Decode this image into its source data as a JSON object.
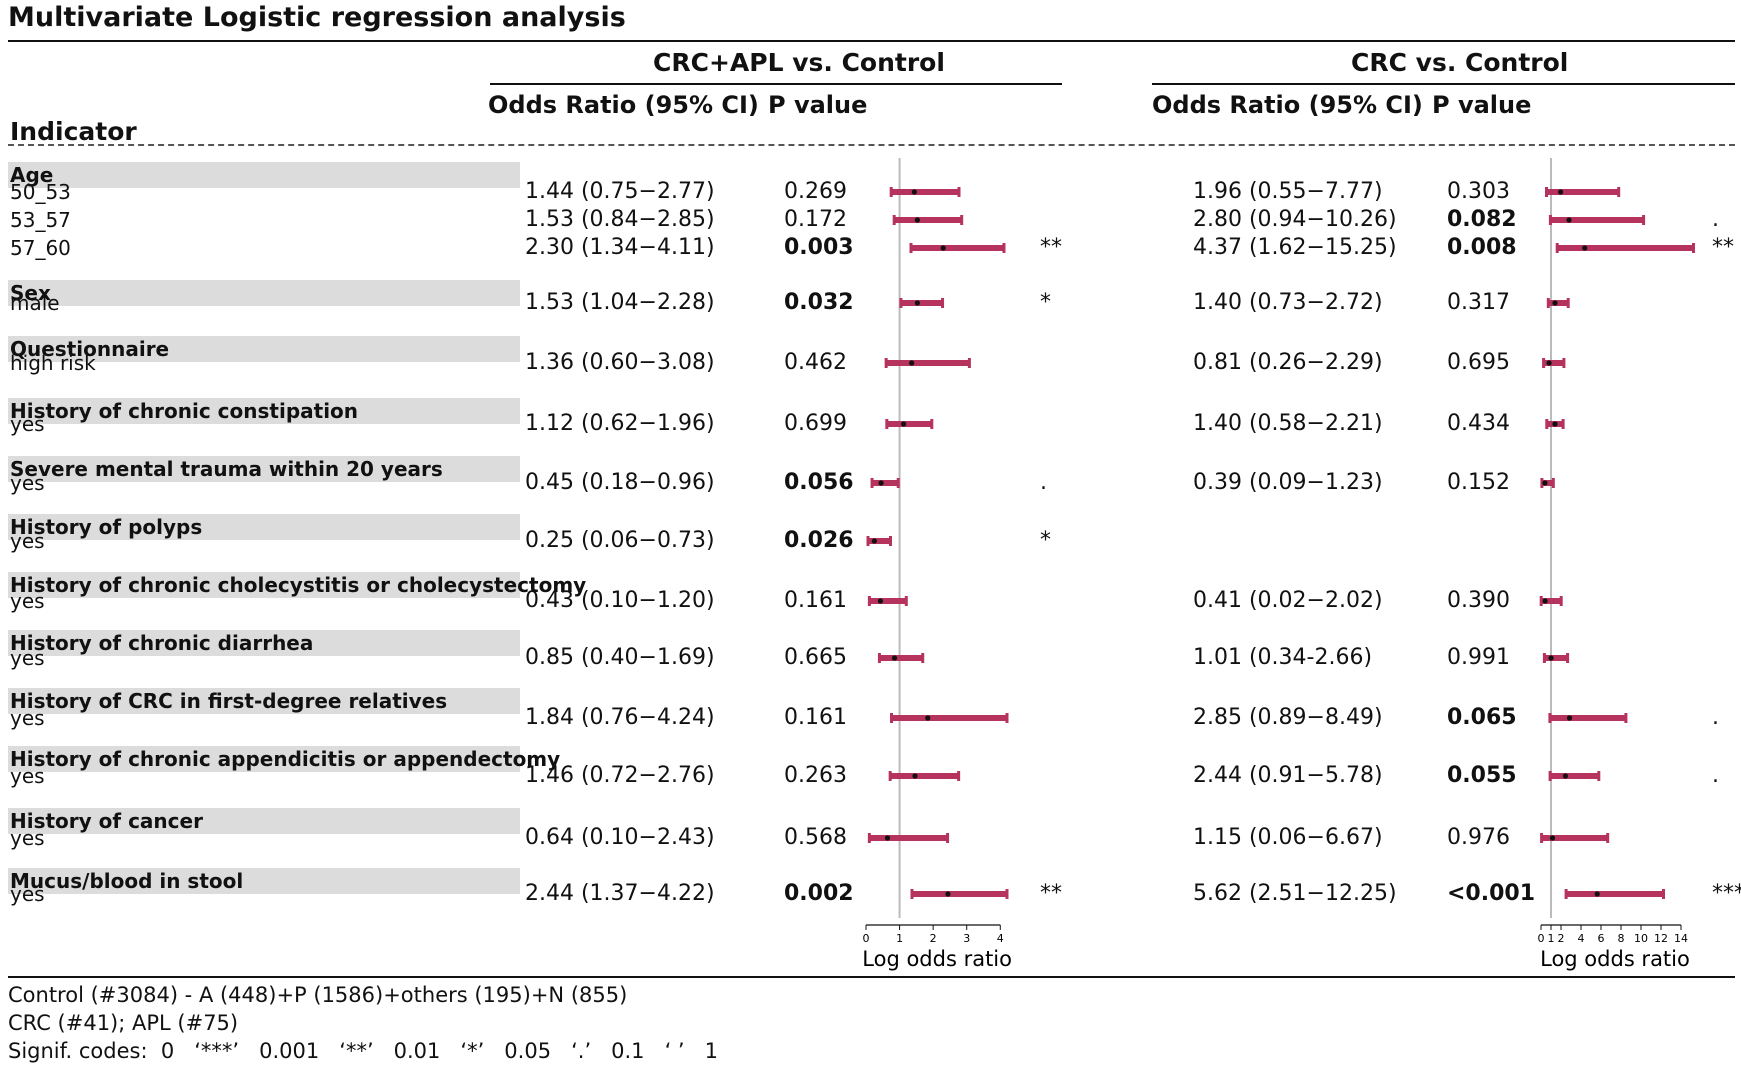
{
  "title": "Multivariate Logistic regression analysis",
  "header": {
    "indicator": "Indicator",
    "group1": "CRC+APL vs. Control",
    "group2": "CRC vs. Control",
    "or_label": "Odds Ratio (95% CI)",
    "p_label": "P value"
  },
  "colors": {
    "bar": "#b5335c",
    "point": "#111111",
    "band": "#dcdcdc",
    "refline": "#bbbbbb"
  },
  "chart_data": {
    "type": "forest",
    "title": "Multivariate Logistic regression analysis",
    "xlabel": "Log odds ratio",
    "reference_line": 1,
    "panels": [
      {
        "name": "CRC+APL vs. Control",
        "xlim": [
          0,
          4.2
        ],
        "ticks": [
          0,
          1,
          2,
          3,
          4
        ]
      },
      {
        "name": "CRC vs. Control",
        "xlim": [
          0,
          15.5
        ],
        "ticks": [
          0,
          1,
          2,
          4,
          6,
          8,
          10,
          12,
          14
        ]
      }
    ],
    "rows": [
      {
        "group": "Age",
        "a": {
          "label": "50_53",
          "crc_apl": {
            "or_text": "1.44 (0.75−2.77)",
            "p_text": "0.269",
            "bold": false,
            "sig": "",
            "or": 1.44,
            "lo": 0.75,
            "hi": 2.77
          },
          "crc": {
            "or_text": "1.96 (0.55−7.77)",
            "p_text": "0.303",
            "bold": false,
            "sig": "",
            "or": 1.96,
            "lo": 0.55,
            "hi": 7.77
          }
        },
        "b": {
          "label": "53_57",
          "crc_apl": {
            "or_text": "1.53 (0.84−2.85)",
            "p_text": "0.172",
            "bold": false,
            "sig": "",
            "or": 1.53,
            "lo": 0.84,
            "hi": 2.85
          },
          "crc": {
            "or_text": "2.80 (0.94−10.26)",
            "p_text": "0.082",
            "bold": true,
            "sig": ".",
            "or": 2.8,
            "lo": 0.94,
            "hi": 10.26
          }
        },
        "c": {
          "label": "57_60",
          "crc_apl": {
            "or_text": "2.30 (1.34−4.11)",
            "p_text": "0.003",
            "bold": true,
            "sig": "**",
            "or": 2.3,
            "lo": 1.34,
            "hi": 4.11
          },
          "crc": {
            "or_text": "4.37 (1.62−15.25)",
            "p_text": "0.008",
            "bold": true,
            "sig": "**",
            "or": 4.37,
            "lo": 1.62,
            "hi": 15.25
          }
        }
      },
      {
        "group": "Sex",
        "a": {
          "label": "male",
          "crc_apl": {
            "or_text": "1.53 (1.04−2.28)",
            "p_text": "0.032",
            "bold": true,
            "sig": "*",
            "or": 1.53,
            "lo": 1.04,
            "hi": 2.28
          },
          "crc": {
            "or_text": "1.40 (0.73−2.72)",
            "p_text": "0.317",
            "bold": false,
            "sig": "",
            "or": 1.4,
            "lo": 0.73,
            "hi": 2.72
          }
        }
      },
      {
        "group": "Questionnaire",
        "a": {
          "label": "high risk",
          "crc_apl": {
            "or_text": "1.36 (0.60−3.08)",
            "p_text": "0.462",
            "bold": false,
            "sig": "",
            "or": 1.36,
            "lo": 0.6,
            "hi": 3.08
          },
          "crc": {
            "or_text": "0.81 (0.26−2.29)",
            "p_text": "0.695",
            "bold": false,
            "sig": "",
            "or": 0.81,
            "lo": 0.26,
            "hi": 2.29
          }
        }
      },
      {
        "group": "History of chronic constipation",
        "a": {
          "label": "yes",
          "crc_apl": {
            "or_text": "1.12 (0.62−1.96)",
            "p_text": "0.699",
            "bold": false,
            "sig": "",
            "or": 1.12,
            "lo": 0.62,
            "hi": 1.96
          },
          "crc": {
            "or_text": "1.40 (0.58−2.21)",
            "p_text": "0.434",
            "bold": false,
            "sig": "",
            "or": 1.4,
            "lo": 0.58,
            "hi": 2.21
          }
        }
      },
      {
        "group": "Severe mental trauma within 20 years",
        "a": {
          "label": "yes",
          "crc_apl": {
            "or_text": "0.45 (0.18−0.96)",
            "p_text": "0.056",
            "bold": true,
            "sig": ".",
            "or": 0.45,
            "lo": 0.18,
            "hi": 0.96
          },
          "crc": {
            "or_text": "0.39 (0.09−1.23)",
            "p_text": "0.152",
            "bold": false,
            "sig": "",
            "or": 0.39,
            "lo": 0.09,
            "hi": 1.23
          }
        }
      },
      {
        "group": "History of polyps",
        "a": {
          "label": "yes",
          "crc_apl": {
            "or_text": "0.25 (0.06−0.73)",
            "p_text": "0.026",
            "bold": true,
            "sig": "*",
            "or": 0.25,
            "lo": 0.06,
            "hi": 0.73
          },
          "crc": null
        }
      },
      {
        "group": "History of chronic cholecystitis or cholecystectomy",
        "a": {
          "label": "yes",
          "crc_apl": {
            "or_text": "0.43 (0.10−1.20)",
            "p_text": "0.161",
            "bold": false,
            "sig": "",
            "or": 0.43,
            "lo": 0.1,
            "hi": 1.2
          },
          "crc": {
            "or_text": "0.41 (0.02−2.02)",
            "p_text": "0.390",
            "bold": false,
            "sig": "",
            "or": 0.41,
            "lo": 0.02,
            "hi": 2.02
          }
        }
      },
      {
        "group": "History of chronic diarrhea",
        "a": {
          "label": "yes",
          "crc_apl": {
            "or_text": "0.85 (0.40−1.69)",
            "p_text": "0.665",
            "bold": false,
            "sig": "",
            "or": 0.85,
            "lo": 0.4,
            "hi": 1.69
          },
          "crc": {
            "or_text": "1.01 (0.34-2.66)",
            "p_text": "0.991",
            "bold": false,
            "sig": "",
            "or": 1.01,
            "lo": 0.34,
            "hi": 2.66
          }
        }
      },
      {
        "group": "History of CRC in first-degree relatives",
        "a": {
          "label": "yes",
          "crc_apl": {
            "or_text": "1.84 (0.76−4.24)",
            "p_text": "0.161",
            "bold": false,
            "sig": "",
            "or": 1.84,
            "lo": 0.76,
            "hi": 4.24
          },
          "crc": {
            "or_text": "2.85 (0.89−8.49)",
            "p_text": "0.065",
            "bold": true,
            "sig": ".",
            "or": 2.85,
            "lo": 0.89,
            "hi": 8.49
          }
        }
      },
      {
        "group": "History of chronic appendicitis or appendectomy",
        "a": {
          "label": "yes",
          "crc_apl": {
            "or_text": "1.46 (0.72−2.76)",
            "p_text": "0.263",
            "bold": false,
            "sig": "",
            "or": 1.46,
            "lo": 0.72,
            "hi": 2.76
          },
          "crc": {
            "or_text": "2.44 (0.91−5.78)",
            "p_text": "0.055",
            "bold": true,
            "sig": ".",
            "or": 2.44,
            "lo": 0.91,
            "hi": 5.78
          }
        }
      },
      {
        "group": "History of cancer",
        "a": {
          "label": "yes",
          "crc_apl": {
            "or_text": "0.64 (0.10−2.43)",
            "p_text": "0.568",
            "bold": false,
            "sig": "",
            "or": 0.64,
            "lo": 0.1,
            "hi": 2.43
          },
          "crc": {
            "or_text": "1.15 (0.06−6.67)",
            "p_text": "0.976",
            "bold": false,
            "sig": "",
            "or": 1.15,
            "lo": 0.06,
            "hi": 6.67
          }
        }
      },
      {
        "group": "Mucus/blood in stool",
        "a": {
          "label": "yes",
          "crc_apl": {
            "or_text": "2.44 (1.37−4.22)",
            "p_text": "0.002",
            "bold": true,
            "sig": "**",
            "or": 2.44,
            "lo": 1.37,
            "hi": 4.22
          },
          "crc": {
            "or_text": "5.62 (2.51−12.25)",
            "p_text": "<0.001",
            "bold": true,
            "sig": "***",
            "or": 5.62,
            "lo": 2.51,
            "hi": 12.25
          }
        }
      }
    ]
  },
  "footer": {
    "line1": "Control (#3084) - A (448)+P (1586)+others (195)+N (855)",
    "line2": "CRC (#41); APL (#75)",
    "line3": "Signif. codes:  0   ‘***’   0.001   ‘**’   0.01   ‘*’   0.05   ‘.’   0.1   ‘ ’   1"
  }
}
